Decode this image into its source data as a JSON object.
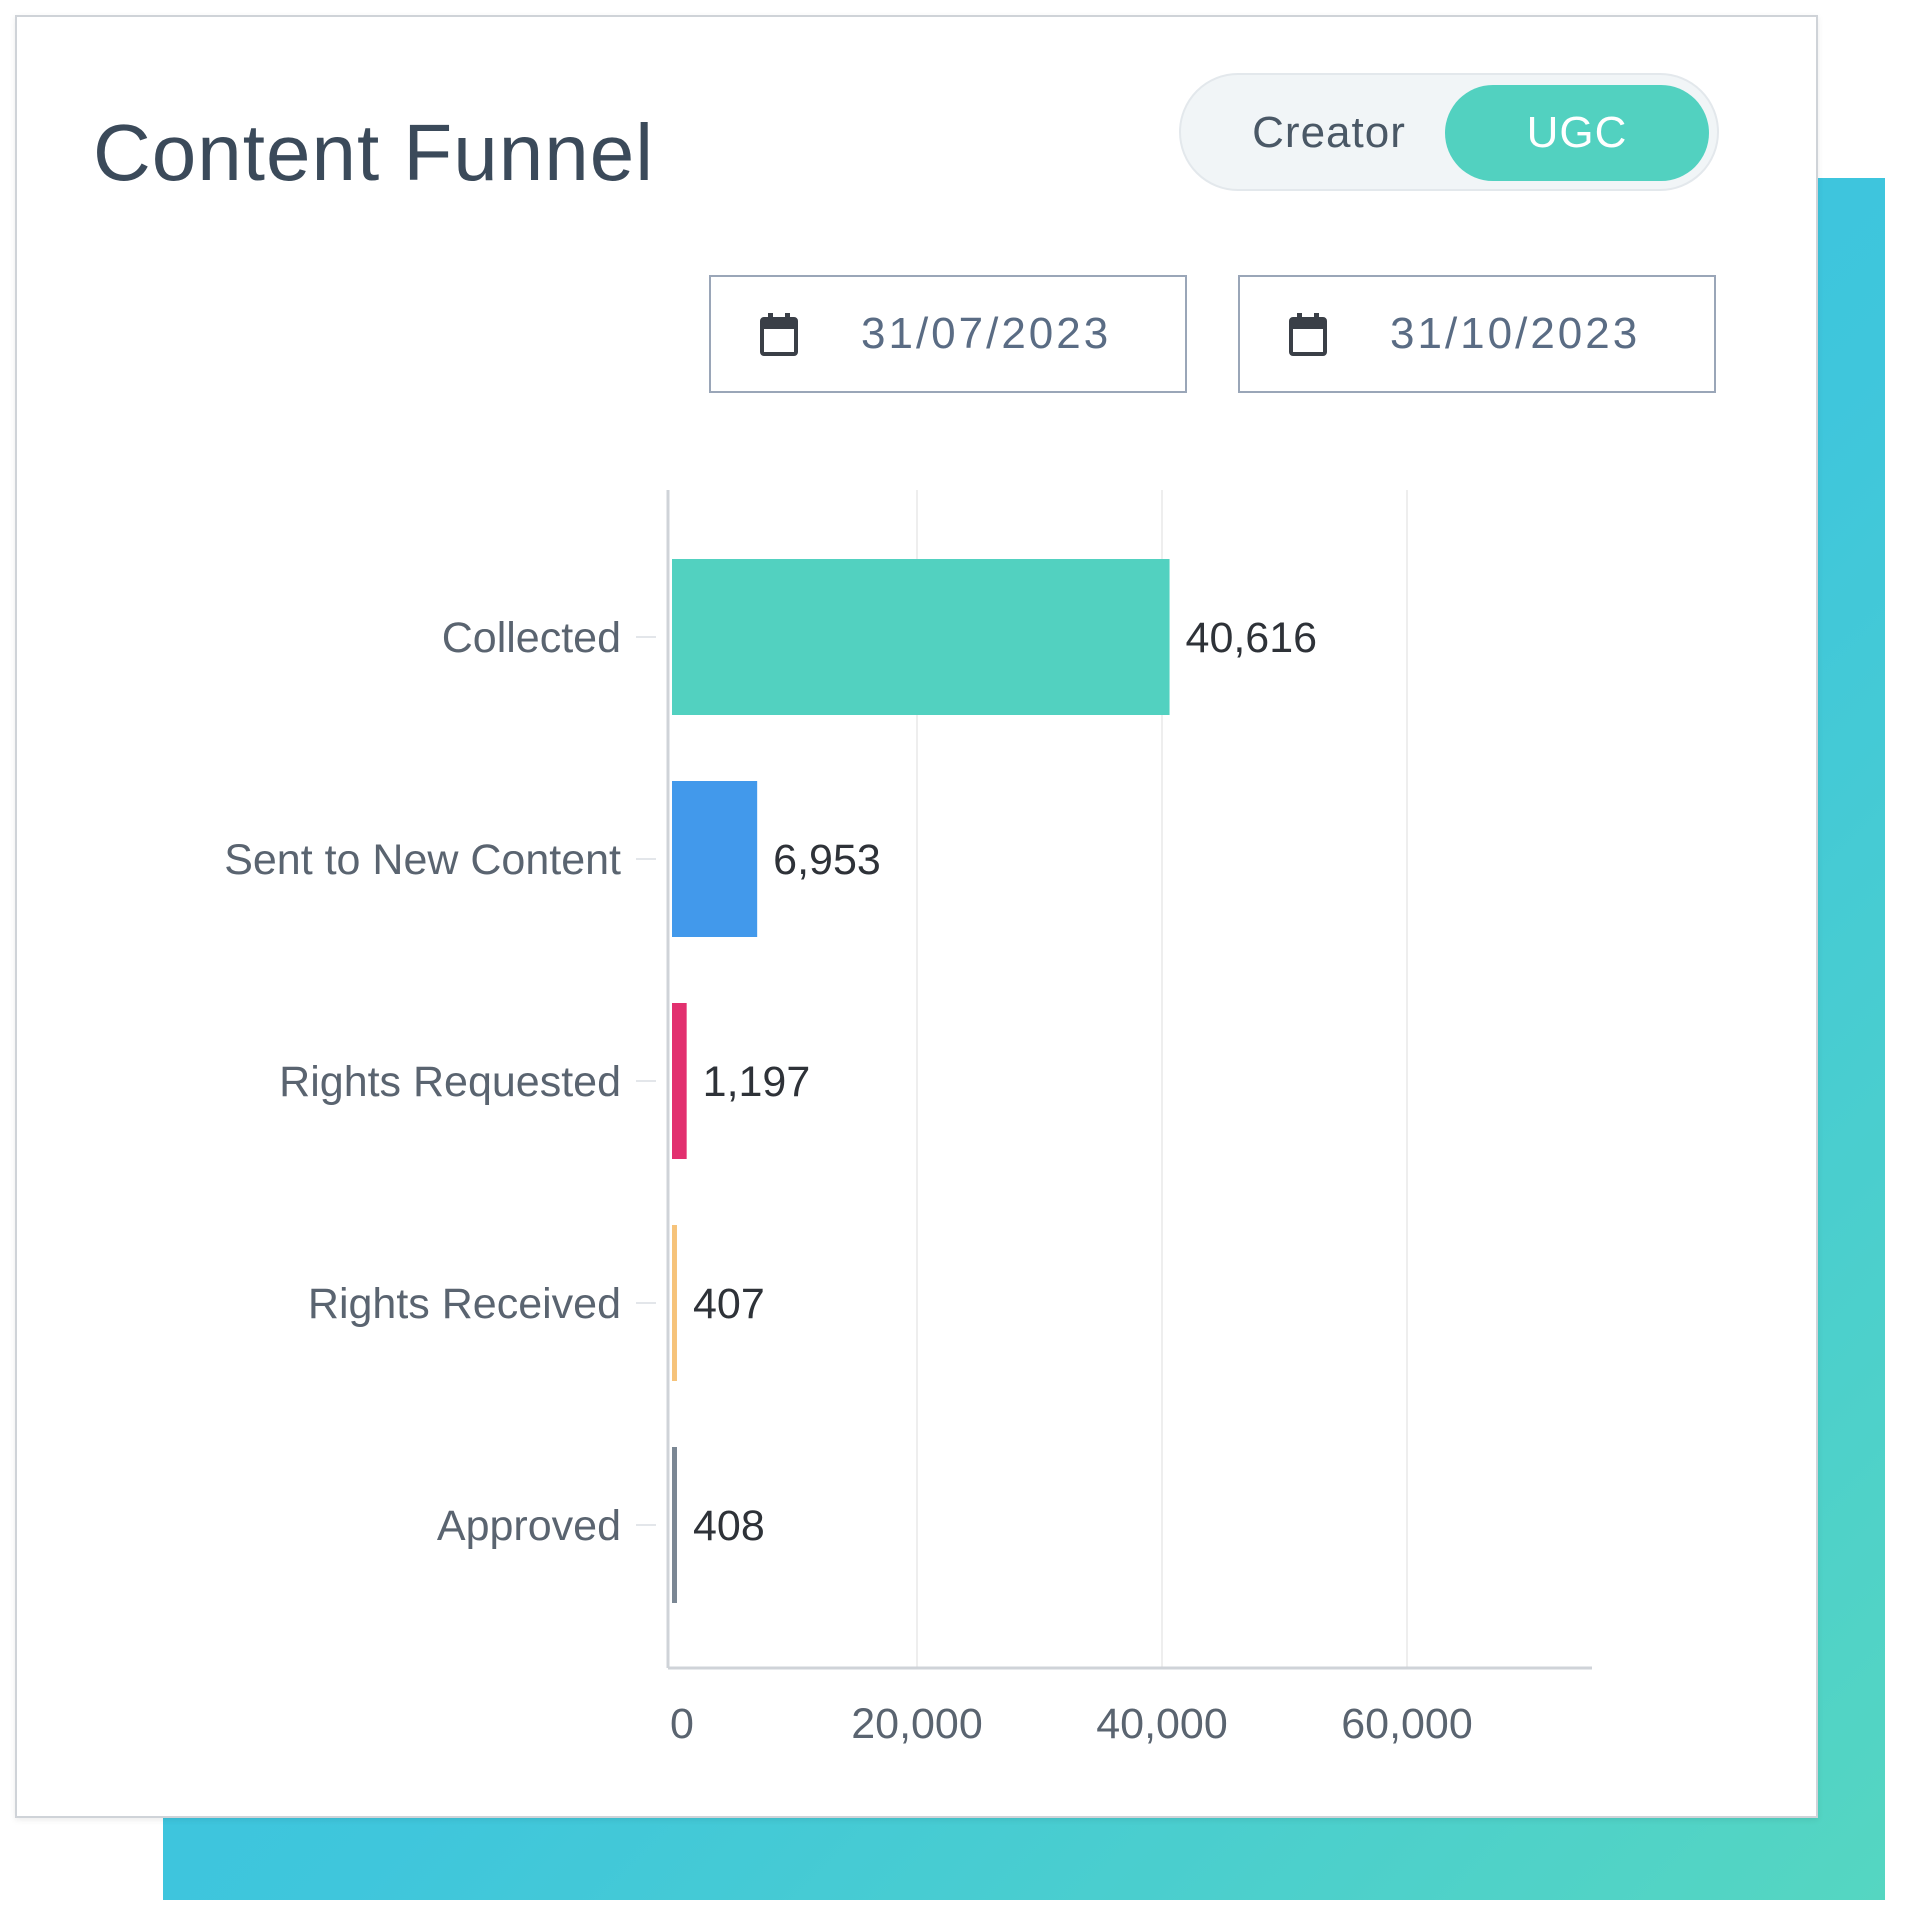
{
  "header": {
    "title": "Content Funnel"
  },
  "toggle": {
    "options": [
      "Creator",
      "UGC"
    ],
    "selected": "UGC"
  },
  "date_range": {
    "start": "31/07/2023",
    "end": "31/10/2023"
  },
  "colors": {
    "accent": "#52d1c0",
    "backdrop_start": "#33bde6",
    "backdrop_end": "#55d6c1"
  },
  "chart_data": {
    "type": "bar",
    "orientation": "horizontal",
    "title": "",
    "xlabel": "",
    "ylabel": "",
    "categories": [
      "Collected",
      "Sent to New Content",
      "Rights Requested",
      "Rights Received",
      "Approved"
    ],
    "values": [
      40616,
      6953,
      1197,
      407,
      408
    ],
    "value_labels": [
      "40,616",
      "6,953",
      "1,197",
      "407",
      "408"
    ],
    "bar_colors": [
      "#52d1c0",
      "#4299eb",
      "#e2306f",
      "#f6c37a",
      "#7b8794"
    ],
    "xlim": [
      0,
      75000
    ],
    "xticks": [
      0,
      20000,
      40000,
      60000
    ],
    "xtick_labels": [
      "0",
      "20,000",
      "40,000",
      "60,000"
    ],
    "grid": "vertical",
    "legend": "none"
  }
}
